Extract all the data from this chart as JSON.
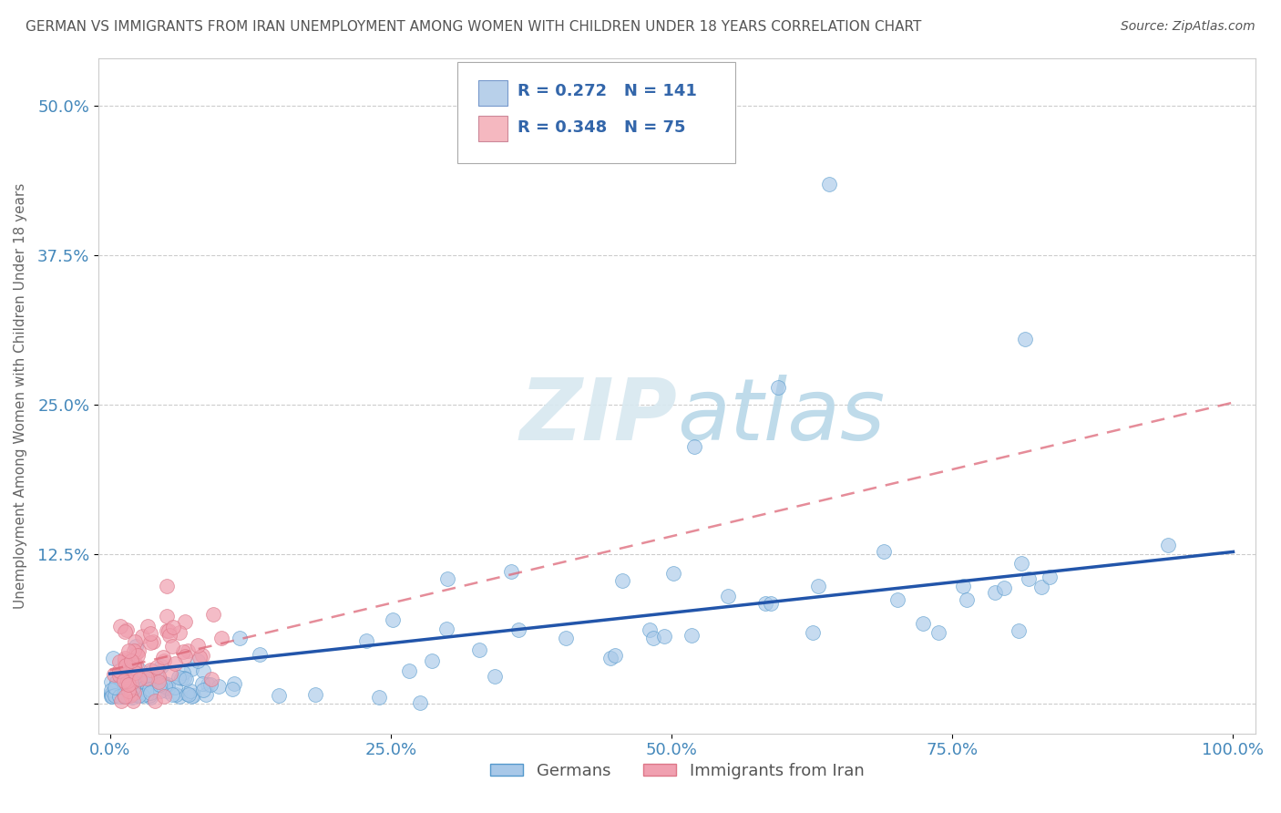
{
  "title": "GERMAN VS IMMIGRANTS FROM IRAN UNEMPLOYMENT AMONG WOMEN WITH CHILDREN UNDER 18 YEARS CORRELATION CHART",
  "source": "Source: ZipAtlas.com",
  "ylabel": "Unemployment Among Women with Children Under 18 years",
  "xlabel": "",
  "xlim": [
    -0.01,
    1.02
  ],
  "ylim": [
    -0.025,
    0.54
  ],
  "xticks": [
    0.0,
    0.25,
    0.5,
    0.75,
    1.0
  ],
  "xticklabels": [
    "0.0%",
    "25.0%",
    "50.0%",
    "75.0%",
    "100.0%"
  ],
  "yticks": [
    0.0,
    0.125,
    0.25,
    0.375,
    0.5
  ],
  "yticklabels": [
    "",
    "12.5%",
    "25.0%",
    "37.5%",
    "50.0%"
  ],
  "legend_r_german": "R = 0.272",
  "legend_n_german": "N = 141",
  "legend_r_iran": "R = 0.348",
  "legend_n_iran": "N = 75",
  "blue_scatter_color": "#a8c8e8",
  "blue_edge_color": "#5599cc",
  "blue_line_color": "#2255aa",
  "pink_scatter_color": "#f0a0b0",
  "pink_edge_color": "#dd7788",
  "pink_line_color": "#dd6677",
  "legend_blue_fill": "#b8d0ea",
  "legend_pink_fill": "#f5b8c0",
  "watermark_color": "#d8e8f0",
  "background_color": "#ffffff",
  "grid_color": "#cccccc",
  "title_color": "#555555",
  "axis_label_color": "#666666",
  "tick_label_color": "#4488bb",
  "legend_value_color": "#3366aa",
  "legend_label_color": "#555555"
}
